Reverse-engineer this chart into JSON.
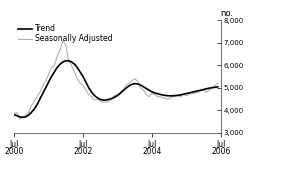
{
  "ylabel": "no.",
  "xlim_start": 0,
  "xlim_end": 72,
  "ylim": [
    3000,
    8000
  ],
  "yticks": [
    3000,
    4000,
    5000,
    6000,
    7000,
    8000
  ],
  "xtick_positions": [
    0,
    24,
    48,
    72
  ],
  "xtick_labels_line1": [
    "Jul",
    "Jul",
    "Jul",
    "Jul"
  ],
  "xtick_labels_line2": [
    "2000",
    "2002",
    "2004",
    "2006"
  ],
  "trend_color": "#000000",
  "sa_color": "#b0b0b0",
  "trend_lw": 1.2,
  "sa_lw": 0.8,
  "trend": [
    3800,
    3750,
    3700,
    3680,
    3700,
    3780,
    3900,
    4050,
    4250,
    4500,
    4750,
    5000,
    5250,
    5500,
    5700,
    5900,
    6050,
    6150,
    6200,
    6200,
    6150,
    6050,
    5900,
    5700,
    5500,
    5250,
    5000,
    4800,
    4650,
    4550,
    4480,
    4450,
    4450,
    4480,
    4520,
    4580,
    4650,
    4750,
    4870,
    4980,
    5080,
    5150,
    5180,
    5170,
    5120,
    5050,
    4970,
    4890,
    4820,
    4770,
    4730,
    4700,
    4670,
    4650,
    4640,
    4640,
    4650,
    4660,
    4680,
    4710,
    4740,
    4770,
    4800,
    4830,
    4860,
    4890,
    4920,
    4950,
    4980,
    5000,
    5020,
    5040
  ],
  "sa": [
    3850,
    3900,
    3600,
    3700,
    3750,
    3900,
    4200,
    4400,
    4600,
    4800,
    5100,
    5300,
    5600,
    5900,
    6000,
    6400,
    6700,
    7100,
    6900,
    6200,
    6000,
    5700,
    5400,
    5200,
    5100,
    4900,
    4700,
    4600,
    4450,
    4500,
    4400,
    4350,
    4350,
    4400,
    4500,
    4650,
    4700,
    4800,
    4900,
    5100,
    5200,
    5300,
    5400,
    5300,
    5000,
    4900,
    4700,
    4600,
    4750,
    4700,
    4600,
    4600,
    4550,
    4500,
    4500,
    4600,
    4600,
    4650,
    4600,
    4700,
    4650,
    4700,
    4750,
    4750,
    4800,
    4850,
    4900,
    4800,
    4900,
    5000,
    5100,
    5200
  ],
  "legend_trend": "Trend",
  "legend_sa": "Seasonally Adjusted",
  "background": "#ffffff",
  "spine_color": "#555555",
  "tick_color": "#555555"
}
